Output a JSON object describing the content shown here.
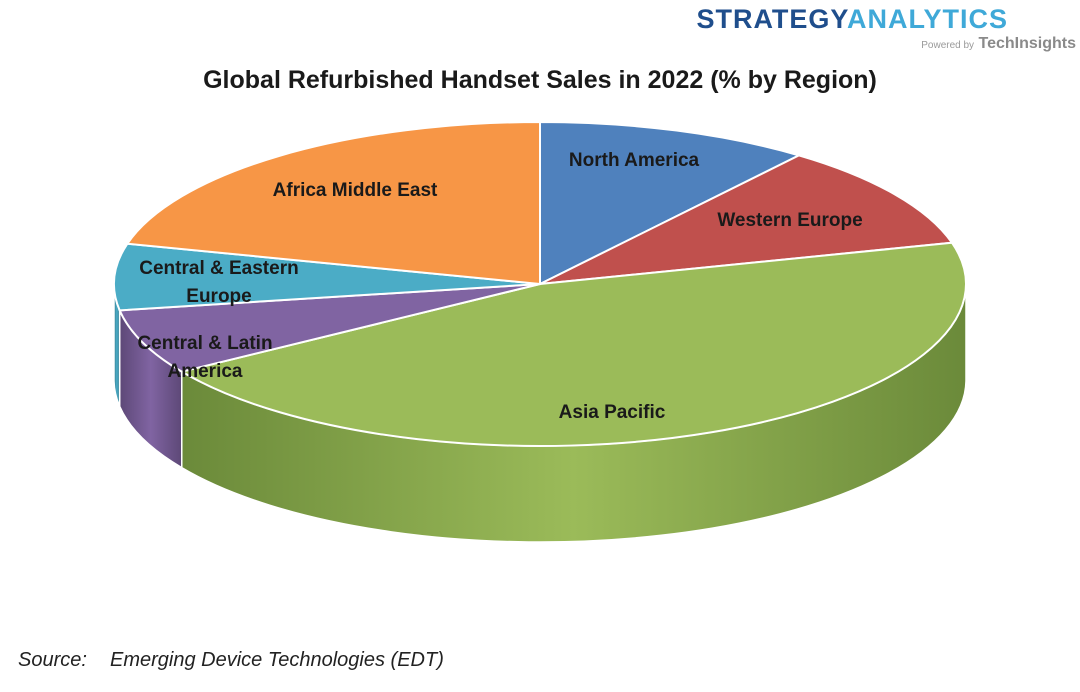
{
  "brand": {
    "name_part1": "STRATEGY",
    "name_part2": "ANALYTICS",
    "powered_by": "Powered by",
    "company": "TechInsights",
    "color_dark": "#1f4e8c",
    "color_light": "#3fa9d8"
  },
  "chart_data": {
    "type": "pie",
    "title": "Global Refurbished Handset Sales in 2022 (% by Region)",
    "style": "3d-exploded-none",
    "slices": [
      {
        "label": "North America",
        "value": 10.4,
        "color": "#4f81bd",
        "side_color": "#3a5f8c"
      },
      {
        "label": "Western Europe",
        "value": 10.5,
        "color": "#c0504d",
        "side_color": "#8c3a38"
      },
      {
        "label": "Asia Pacific",
        "value": 45.0,
        "color": "#9bbb59",
        "side_color": "#6b8a3a"
      },
      {
        "label": "Central & Latin America",
        "value": 6.5,
        "color": "#8064a2",
        "side_color": "#5d4877"
      },
      {
        "label": "Central & Eastern Europe",
        "value": 6.6,
        "color": "#4bacc6",
        "side_color": "#367d90"
      },
      {
        "label": "Africa Middle East",
        "value": 21.0,
        "color": "#f79646",
        "side_color": "#b86d31"
      }
    ]
  },
  "source": {
    "label": "Source:",
    "text": "Emerging Device Technologies (EDT)"
  }
}
